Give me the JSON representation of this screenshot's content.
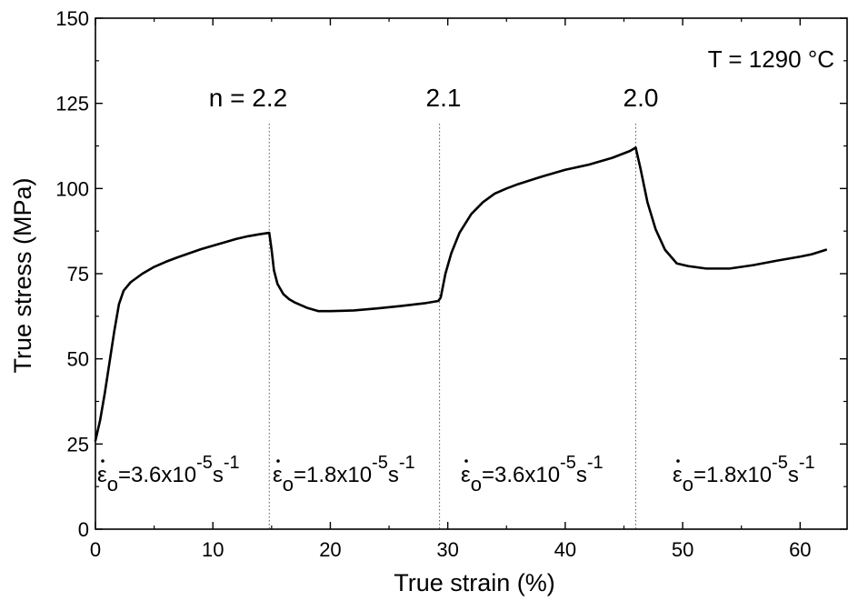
{
  "chart_data": {
    "type": "line",
    "xlabel": "True strain (%)",
    "ylabel": "True stress (MPa)",
    "xlim": [
      0,
      64
    ],
    "ylim": [
      0,
      150
    ],
    "x_ticks": [
      "0",
      "10",
      "20",
      "30",
      "40",
      "50",
      "60"
    ],
    "y_ticks": [
      "0",
      "25",
      "50",
      "75",
      "100",
      "125",
      "150"
    ],
    "grid": false,
    "series": [
      {
        "points": [
          [
            0.0,
            26
          ],
          [
            0.4,
            32
          ],
          [
            0.8,
            40
          ],
          [
            1.2,
            49
          ],
          [
            1.6,
            58
          ],
          [
            2.0,
            66
          ],
          [
            2.4,
            70
          ],
          [
            3.0,
            72.5
          ],
          [
            4.0,
            75
          ],
          [
            5.0,
            77
          ],
          [
            6.0,
            78.5
          ],
          [
            7.0,
            79.8
          ],
          [
            8.0,
            81
          ],
          [
            9.0,
            82.2
          ],
          [
            10.0,
            83.2
          ],
          [
            11.0,
            84.2
          ],
          [
            12.0,
            85.2
          ],
          [
            13.0,
            86
          ],
          [
            14.0,
            86.6
          ],
          [
            14.8,
            87
          ],
          [
            15.0,
            82
          ],
          [
            15.2,
            76
          ],
          [
            15.5,
            72
          ],
          [
            16.0,
            69
          ],
          [
            16.5,
            67.5
          ],
          [
            17.0,
            66.5
          ],
          [
            18.0,
            65
          ],
          [
            19.0,
            64
          ],
          [
            20.0,
            64
          ],
          [
            22.0,
            64.2
          ],
          [
            24.0,
            64.8
          ],
          [
            26.0,
            65.5
          ],
          [
            28.0,
            66.3
          ],
          [
            29.2,
            67
          ],
          [
            29.4,
            68
          ],
          [
            29.8,
            75
          ],
          [
            30.3,
            81
          ],
          [
            31.0,
            87
          ],
          [
            32.0,
            92.5
          ],
          [
            33.0,
            96
          ],
          [
            34.0,
            98.5
          ],
          [
            35.0,
            100
          ],
          [
            36.0,
            101.3
          ],
          [
            38.0,
            103.5
          ],
          [
            40.0,
            105.5
          ],
          [
            42.0,
            107
          ],
          [
            44.0,
            109
          ],
          [
            45.5,
            111
          ],
          [
            46.0,
            112
          ],
          [
            46.4,
            106
          ],
          [
            47.0,
            96
          ],
          [
            47.7,
            88
          ],
          [
            48.5,
            82
          ],
          [
            49.5,
            78
          ],
          [
            50.5,
            77.2
          ],
          [
            52.0,
            76.5
          ],
          [
            54.0,
            76.5
          ],
          [
            55.0,
            77
          ],
          [
            56.0,
            77.5
          ],
          [
            58.0,
            78.8
          ],
          [
            60.0,
            80
          ],
          [
            61.0,
            80.7
          ],
          [
            62.2,
            82
          ]
        ]
      }
    ],
    "transitions_x": [
      14.8,
      29.3,
      46.0
    ],
    "annotations": {
      "temperature": "T = 1290 °C",
      "n_values": [
        "n = 2.2",
        "2.1",
        "2.0"
      ],
      "rate_prefix": "ε",
      "rate_subscript": "o",
      "rate_mid": "x10",
      "rate_exp1": "-5",
      "rate_unit": "s",
      "rate_exp2": "-1",
      "rates": [
        "=3.6",
        "=1.8",
        "=3.6",
        "=1.8"
      ]
    }
  }
}
